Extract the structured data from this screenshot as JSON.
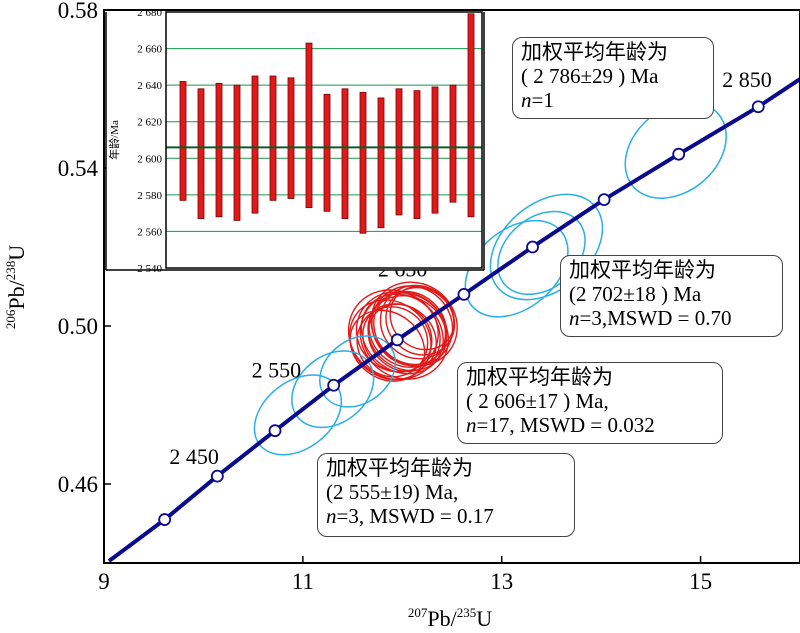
{
  "chart_data": {
    "type": "scatter",
    "subtype": "U-Pb concordia diagram",
    "xlabel": {
      "pre": "207",
      "mid": "Pb/",
      "sup2": "235",
      "post": "U"
    },
    "ylabel": {
      "pre": "206",
      "mid": "Pb/",
      "sup2": "238",
      "post": "U"
    },
    "xlim": [
      9,
      16
    ],
    "ylim": [
      0.44,
      0.58
    ],
    "x_ticks": [
      "9",
      "11",
      "13",
      "15"
    ],
    "y_ticks": [
      "0.46",
      "0.50",
      "0.54",
      "0.58"
    ],
    "concordia_ages": [
      {
        "age": 2400,
        "x": 9.61,
        "y": 0.451
      },
      {
        "age": 2450,
        "x": 10.14,
        "y": 0.462
      },
      {
        "age": 2500,
        "x": 10.72,
        "y": 0.4735
      },
      {
        "age": 2550,
        "x": 11.31,
        "y": 0.485
      },
      {
        "age": 2600,
        "x": 11.95,
        "y": 0.4965
      },
      {
        "age": 2650,
        "x": 12.62,
        "y": 0.508
      },
      {
        "age": 2700,
        "x": 13.31,
        "y": 0.52
      },
      {
        "age": 2750,
        "x": 14.03,
        "y": 0.532
      },
      {
        "age": 2800,
        "x": 14.78,
        "y": 0.5435
      },
      {
        "age": 2850,
        "x": 15.58,
        "y": 0.5555
      }
    ],
    "age_labels": [
      "2 450",
      "2 550",
      "2 650",
      "2 850"
    ],
    "ellipses": {
      "red": [
        {
          "x": 11.95,
          "y": 0.497,
          "rx": 0.55,
          "ry": 0.009,
          "rot": -50
        },
        {
          "x": 12.05,
          "y": 0.499,
          "rx": 0.6,
          "ry": 0.01,
          "rot": -52
        },
        {
          "x": 12.1,
          "y": 0.5,
          "rx": 0.65,
          "ry": 0.0105,
          "rot": -48
        },
        {
          "x": 11.9,
          "y": 0.496,
          "rx": 0.58,
          "ry": 0.009,
          "rot": -55
        },
        {
          "x": 12.0,
          "y": 0.498,
          "rx": 0.62,
          "ry": 0.011,
          "rot": -50
        },
        {
          "x": 12.15,
          "y": 0.501,
          "rx": 0.6,
          "ry": 0.0095,
          "rot": -46
        },
        {
          "x": 11.85,
          "y": 0.495,
          "rx": 0.55,
          "ry": 0.01,
          "rot": -53
        },
        {
          "x": 12.02,
          "y": 0.4975,
          "rx": 0.7,
          "ry": 0.0115,
          "rot": -51
        },
        {
          "x": 12.2,
          "y": 0.502,
          "rx": 0.5,
          "ry": 0.0085,
          "rot": -49
        },
        {
          "x": 11.95,
          "y": 0.4985,
          "rx": 0.66,
          "ry": 0.0105,
          "rot": -57
        },
        {
          "x": 12.08,
          "y": 0.4995,
          "rx": 0.57,
          "ry": 0.0098,
          "rot": -45
        },
        {
          "x": 11.88,
          "y": 0.4965,
          "rx": 0.63,
          "ry": 0.0108,
          "rot": -50
        },
        {
          "x": 12.12,
          "y": 0.5005,
          "rx": 0.68,
          "ry": 0.0112,
          "rot": -54
        },
        {
          "x": 12.0,
          "y": 0.497,
          "rx": 0.52,
          "ry": 0.0092,
          "rot": -47
        },
        {
          "x": 11.92,
          "y": 0.4978,
          "rx": 0.72,
          "ry": 0.012,
          "rot": -52
        },
        {
          "x": 12.18,
          "y": 0.5012,
          "rx": 0.54,
          "ry": 0.009,
          "rot": -50
        },
        {
          "x": 12.05,
          "y": 0.4982,
          "rx": 0.6,
          "ry": 0.0103,
          "rot": -56
        }
      ],
      "blue": [
        {
          "x": 10.95,
          "y": 0.4775,
          "rx": 0.65,
          "ry": 0.0085,
          "rot": -38
        },
        {
          "x": 11.3,
          "y": 0.484,
          "rx": 0.6,
          "ry": 0.0085,
          "rot": -38
        },
        {
          "x": 11.55,
          "y": 0.4885,
          "rx": 0.55,
          "ry": 0.008,
          "rot": -38
        },
        {
          "x": 13.4,
          "y": 0.5185,
          "rx": 0.65,
          "ry": 0.009,
          "rot": -40
        },
        {
          "x": 13.15,
          "y": 0.5145,
          "rx": 0.78,
          "ry": 0.01,
          "rot": -40
        },
        {
          "x": 13.45,
          "y": 0.52,
          "rx": 0.85,
          "ry": 0.011,
          "rot": -40
        },
        {
          "x": 14.75,
          "y": 0.5445,
          "rx": 0.75,
          "ry": 0.0105,
          "rot": -40
        }
      ]
    },
    "inset": {
      "type": "bar",
      "ylabel": "年龄/Ma",
      "ylim": [
        2540,
        2680
      ],
      "y_ticks": [
        "2 540",
        "2 560",
        "2 580",
        "2 600",
        "2 620",
        "2 640",
        "2 660",
        "2 680"
      ],
      "mean_line": 2606,
      "bars": [
        {
          "lo": 2577,
          "hi": 2642
        },
        {
          "lo": 2567,
          "hi": 2638
        },
        {
          "lo": 2568,
          "hi": 2641
        },
        {
          "lo": 2566,
          "hi": 2640
        },
        {
          "lo": 2570,
          "hi": 2645
        },
        {
          "lo": 2577,
          "hi": 2645
        },
        {
          "lo": 2578,
          "hi": 2644
        },
        {
          "lo": 2573,
          "hi": 2663
        },
        {
          "lo": 2571,
          "hi": 2635
        },
        {
          "lo": 2567,
          "hi": 2638
        },
        {
          "lo": 2559,
          "hi": 2636
        },
        {
          "lo": 2562,
          "hi": 2633
        },
        {
          "lo": 2569,
          "hi": 2638
        },
        {
          "lo": 2567,
          "hi": 2637
        },
        {
          "lo": 2570,
          "hi": 2639
        },
        {
          "lo": 2576,
          "hi": 2640
        },
        {
          "lo": 2568,
          "hi": 2679
        }
      ]
    },
    "colors": {
      "concordia": "#0a0a8c",
      "red_ellipse": "#e01a1a",
      "blue_ellipse": "#29aee6",
      "bar_fill": "#e01a1a",
      "inset_grid": "#159a4a",
      "mean_line": "#0b5a2a"
    }
  },
  "annotations": [
    {
      "line1": "加权平均年龄为",
      "line2": "( 2 786±29 ) Ma",
      "line3_n": "n",
      "line3": "=1"
    },
    {
      "line1": "加权平均年龄为",
      "line2": "(2 702±18 ) Ma",
      "line3_n": "n",
      "line3": "=3,MSWD = 0.70"
    },
    {
      "line1": "加权平均年龄为",
      "line2": "( 2 606±17 ) Ma,",
      "line3_n": "n",
      "line3": "=17, MSWD = 0.032"
    },
    {
      "line1": "加权平均年龄为",
      "line2": "(2 555±19) Ma,",
      "line3_n": "n",
      "line3": "=3, MSWD = 0.17"
    }
  ]
}
